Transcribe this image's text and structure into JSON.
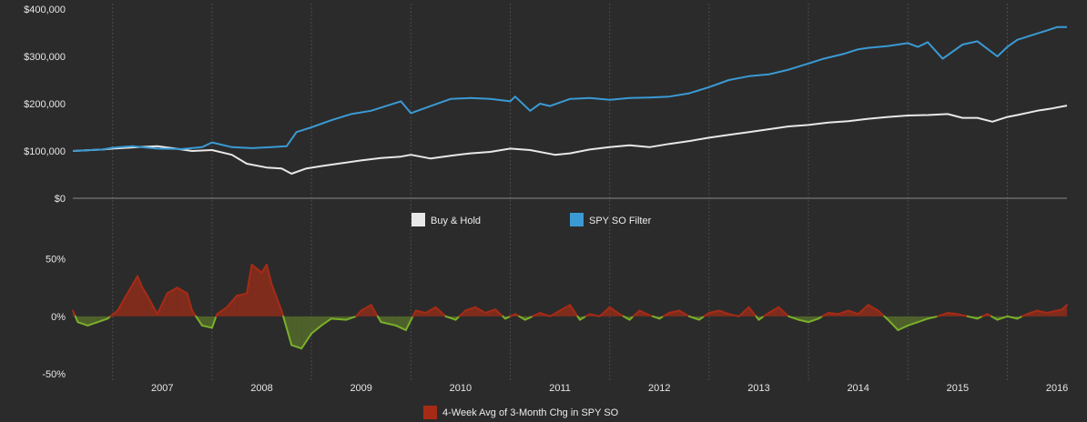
{
  "colors": {
    "background": "#2b2b2b",
    "grid": "#4a4a4a",
    "text": "#e6e6e6",
    "buy_hold": "#e8e8e8",
    "spy_so_filter": "#3a9ad4",
    "indicator_positive": "#a62b16",
    "indicator_negative": "#7ab02a",
    "indicator_positive_fill": "#8e2d1b",
    "indicator_negative_fill": "#566b2b"
  },
  "legend_top": [
    {
      "label": "Buy & Hold",
      "color": "#e8e8e8"
    },
    {
      "label": "SPY SO Filter",
      "color": "#3a9ad4"
    }
  ],
  "legend_bottom": [
    {
      "label": "4-Week Avg of 3-Month Chg in SPY SO",
      "color": "#a62b16"
    }
  ],
  "chart_data": [
    {
      "type": "line",
      "ylim": [
        0,
        400000
      ],
      "yticks": [
        "$0",
        "$100,000",
        "$200,000",
        "$300,000",
        "$400,000"
      ],
      "ytick_values": [
        0,
        100000,
        200000,
        300000,
        400000
      ],
      "x_start": 2006.6,
      "x_end": 2016.6,
      "grid": "vertical",
      "legend": "bottom-center",
      "series": [
        {
          "name": "Buy & Hold",
          "x": [
            2006.6,
            2006.9,
            2007.0,
            2007.25,
            2007.45,
            2007.6,
            2007.8,
            2008.0,
            2008.2,
            2008.35,
            2008.55,
            2008.7,
            2008.8,
            2008.95,
            2009.1,
            2009.3,
            2009.5,
            2009.7,
            2009.9,
            2010.0,
            2010.2,
            2010.4,
            2010.6,
            2010.8,
            2011.0,
            2011.2,
            2011.45,
            2011.6,
            2011.8,
            2012.0,
            2012.2,
            2012.4,
            2012.6,
            2012.8,
            2013.0,
            2013.2,
            2013.4,
            2013.6,
            2013.8,
            2014.0,
            2014.2,
            2014.4,
            2014.6,
            2014.8,
            2015.0,
            2015.2,
            2015.4,
            2015.55,
            2015.7,
            2015.85,
            2016.0,
            2016.1,
            2016.3,
            2016.45,
            2016.6
          ],
          "values": [
            100000,
            103000,
            105000,
            108000,
            110000,
            106000,
            100000,
            102000,
            92000,
            73000,
            65000,
            63000,
            52000,
            63000,
            68000,
            74000,
            80000,
            85000,
            88000,
            92000,
            84000,
            90000,
            95000,
            98000,
            105000,
            102000,
            92000,
            95000,
            103000,
            108000,
            112000,
            108000,
            115000,
            121000,
            128000,
            134000,
            140000,
            146000,
            152000,
            155000,
            160000,
            163000,
            168000,
            172000,
            175000,
            176000,
            178000,
            170000,
            170000,
            162000,
            172000,
            176000,
            185000,
            190000,
            196000
          ]
        },
        {
          "name": "SPY SO Filter",
          "x": [
            2006.6,
            2006.9,
            2007.0,
            2007.2,
            2007.45,
            2007.7,
            2007.9,
            2008.0,
            2008.2,
            2008.4,
            2008.6,
            2008.75,
            2008.85,
            2009.0,
            2009.2,
            2009.4,
            2009.6,
            2009.75,
            2009.9,
            2010.0,
            2010.2,
            2010.4,
            2010.6,
            2010.8,
            2011.0,
            2011.05,
            2011.2,
            2011.3,
            2011.4,
            2011.6,
            2011.8,
            2012.0,
            2012.2,
            2012.4,
            2012.6,
            2012.8,
            2013.0,
            2013.2,
            2013.4,
            2013.6,
            2013.8,
            2014.0,
            2014.15,
            2014.35,
            2014.5,
            2014.6,
            2014.8,
            2015.0,
            2015.1,
            2015.2,
            2015.35,
            2015.55,
            2015.7,
            2015.9,
            2016.0,
            2016.1,
            2016.25,
            2016.4,
            2016.5,
            2016.6
          ],
          "values": [
            100000,
            103000,
            107000,
            110000,
            105000,
            104000,
            108000,
            118000,
            108000,
            106000,
            108000,
            110000,
            140000,
            150000,
            165000,
            178000,
            185000,
            195000,
            205000,
            180000,
            195000,
            210000,
            212000,
            210000,
            205000,
            215000,
            185000,
            200000,
            195000,
            210000,
            212000,
            208000,
            212000,
            213000,
            215000,
            222000,
            235000,
            250000,
            258000,
            262000,
            272000,
            285000,
            295000,
            305000,
            315000,
            318000,
            322000,
            328000,
            320000,
            330000,
            295000,
            325000,
            332000,
            300000,
            320000,
            335000,
            345000,
            355000,
            362000,
            362000
          ]
        }
      ]
    },
    {
      "type": "area",
      "ylim": [
        -50,
        60
      ],
      "yticks": [
        "-50%",
        "0%",
        "50%"
      ],
      "ytick_values": [
        -50,
        0,
        50
      ],
      "xticks": [
        "2007",
        "2008",
        "2009",
        "2010",
        "2011",
        "2012",
        "2013",
        "2014",
        "2015",
        "2016"
      ],
      "x_start": 2006.6,
      "x_end": 2016.6,
      "grid": "vertical",
      "legend": "bottom-center",
      "series": [
        {
          "name": "4-Week Avg of 3-Month Chg in SPY SO",
          "x": [
            2006.6,
            2006.65,
            2006.75,
            2006.85,
            2006.95,
            2007.05,
            2007.15,
            2007.25,
            2007.3,
            2007.35,
            2007.45,
            2007.55,
            2007.65,
            2007.75,
            2007.8,
            2007.9,
            2008.0,
            2008.05,
            2008.15,
            2008.25,
            2008.35,
            2008.4,
            2008.5,
            2008.55,
            2008.6,
            2008.7,
            2008.8,
            2008.9,
            2009.0,
            2009.1,
            2009.2,
            2009.35,
            2009.45,
            2009.5,
            2009.6,
            2009.7,
            2009.85,
            2009.95,
            2010.05,
            2010.15,
            2010.25,
            2010.35,
            2010.45,
            2010.55,
            2010.65,
            2010.75,
            2010.85,
            2010.95,
            2011.05,
            2011.15,
            2011.3,
            2011.4,
            2011.5,
            2011.6,
            2011.7,
            2011.8,
            2011.9,
            2012.0,
            2012.1,
            2012.2,
            2012.3,
            2012.4,
            2012.5,
            2012.6,
            2012.7,
            2012.8,
            2012.9,
            2013.0,
            2013.1,
            2013.2,
            2013.3,
            2013.4,
            2013.5,
            2013.6,
            2013.7,
            2013.8,
            2013.9,
            2014.0,
            2014.1,
            2014.2,
            2014.3,
            2014.4,
            2014.5,
            2014.6,
            2014.7,
            2014.8,
            2014.9,
            2015.0,
            2015.1,
            2015.2,
            2015.3,
            2015.4,
            2015.5,
            2015.6,
            2015.7,
            2015.8,
            2015.9,
            2016.0,
            2016.1,
            2016.2,
            2016.3,
            2016.4,
            2016.5,
            2016.55,
            2016.6
          ],
          "values": [
            5,
            -5,
            -8,
            -5,
            -2,
            5,
            20,
            35,
            25,
            18,
            2,
            20,
            25,
            20,
            5,
            -8,
            -10,
            2,
            8,
            18,
            20,
            45,
            38,
            45,
            28,
            5,
            -25,
            -28,
            -15,
            -8,
            -2,
            -3,
            0,
            5,
            10,
            -5,
            -8,
            -12,
            5,
            3,
            8,
            0,
            -3,
            5,
            8,
            3,
            6,
            -2,
            2,
            -3,
            3,
            0,
            5,
            10,
            -3,
            2,
            0,
            8,
            2,
            -3,
            5,
            1,
            -2,
            3,
            5,
            0,
            -3,
            3,
            5,
            2,
            0,
            8,
            -3,
            3,
            8,
            0,
            -3,
            -5,
            -2,
            3,
            2,
            5,
            2,
            10,
            5,
            -3,
            -12,
            -8,
            -5,
            -2,
            0,
            3,
            2,
            0,
            -2,
            2,
            -3,
            0,
            -2,
            2,
            5,
            3,
            5,
            6,
            10
          ]
        }
      ]
    }
  ]
}
